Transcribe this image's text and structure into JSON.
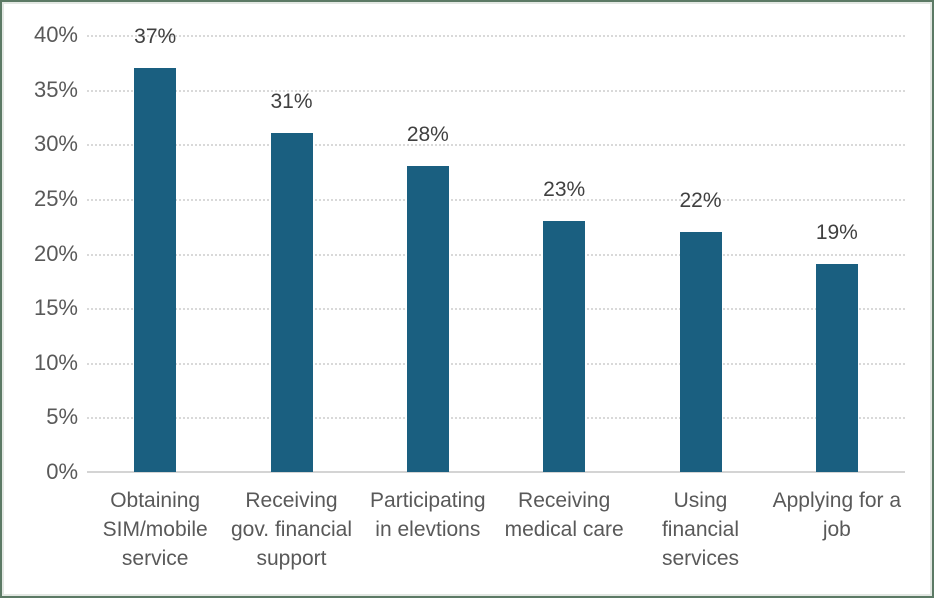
{
  "chart_data": {
    "type": "bar",
    "title": "",
    "xlabel": "",
    "ylabel": "",
    "legend": "none",
    "grid": "horizontal-dotted",
    "ylim": [
      0,
      40
    ],
    "ytick_step": 5,
    "ytick_labels": [
      "0%",
      "5%",
      "10%",
      "15%",
      "20%",
      "25%",
      "30%",
      "35%",
      "40%"
    ],
    "categories": [
      "Obtaining\nSIM/mobile\nservice",
      "Receiving\ngov. financial\nsupport",
      "Participating\nin elevtions",
      "Receiving\nmedical care",
      "Using\nfinancial\nservices",
      "Applying for a\njob"
    ],
    "values": [
      37,
      31,
      28,
      23,
      22,
      19
    ],
    "value_labels": [
      "37%",
      "31%",
      "28%",
      "23%",
      "22%",
      "19%"
    ]
  },
  "colors": {
    "bar": "#1a5f80",
    "gridline": "#d9d9d9",
    "axis_line": "#d4d4d4",
    "tick_label": "#595959",
    "value_label": "#404040",
    "category_label": "#595959",
    "frame_border": "#5c7a65",
    "background": "#ffffff"
  }
}
